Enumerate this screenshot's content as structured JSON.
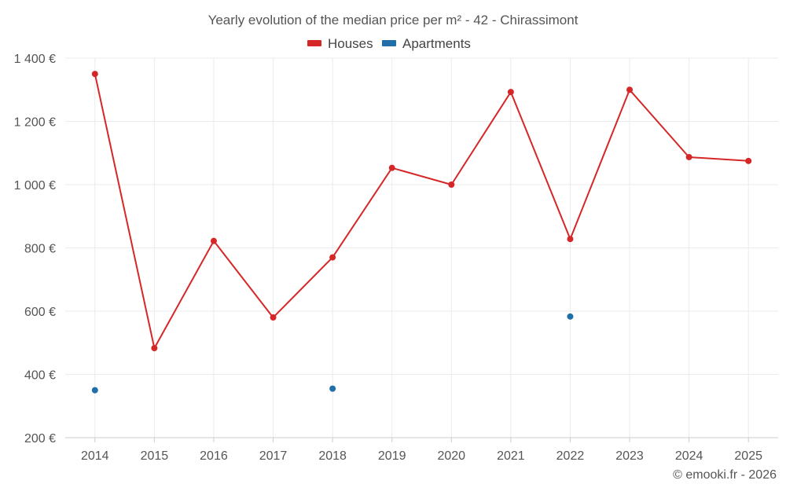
{
  "chart_data": {
    "type": "line",
    "title": "Yearly evolution of the median price per m² - 42 - Chirassimont",
    "categories": [
      "2014",
      "2015",
      "2016",
      "2017",
      "2018",
      "2019",
      "2020",
      "2021",
      "2022",
      "2023",
      "2024",
      "2025"
    ],
    "series": [
      {
        "name": "Houses",
        "color": "#d62728",
        "values": [
          1350,
          483,
          822,
          580,
          770,
          1053,
          1000,
          1293,
          828,
          1300,
          1087,
          1075
        ]
      },
      {
        "name": "Apartments",
        "color": "#1f6fa8",
        "values": [
          350,
          null,
          null,
          null,
          355,
          null,
          null,
          null,
          583,
          null,
          null,
          null
        ]
      }
    ],
    "xlabel": "",
    "ylabel": "",
    "ylim": [
      200,
      1400
    ],
    "yticks": [
      200,
      400,
      600,
      800,
      1000,
      1200,
      1400
    ],
    "ytick_labels": [
      "200 €",
      "400 €",
      "600 €",
      "800 €",
      "1 000 €",
      "1 200 €",
      "1 400 €"
    ],
    "grid": true,
    "legend_position": "top-center",
    "credit": "© emooki.fr - 2026"
  }
}
